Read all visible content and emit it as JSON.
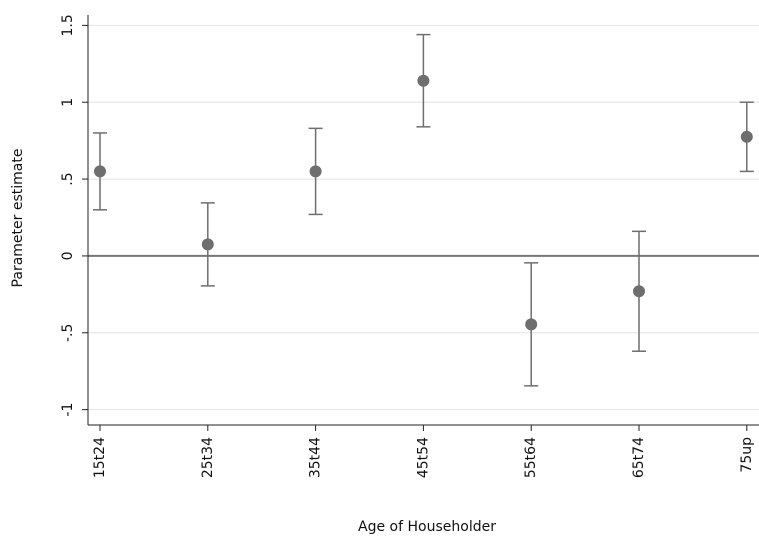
{
  "chart_data": {
    "type": "errorbar",
    "xlabel": "Age of Householder",
    "ylabel": "Parameter estimate",
    "categories": [
      "15t24",
      "25t34",
      "35t44",
      "45t54",
      "55t64",
      "65t74",
      "75up"
    ],
    "values": [
      0.55,
      0.075,
      0.55,
      1.14,
      -0.445,
      -0.23,
      0.775
    ],
    "errors": [
      0.25,
      0.27,
      0.28,
      0.3,
      0.4,
      0.39,
      0.225
    ],
    "color": "#6e6e6e",
    "ylim": [
      -1.1,
      1.6
    ],
    "yticks": [
      1.5,
      1,
      {
        "value": 0.5,
        "label": ".5"
      },
      0,
      {
        "value": -0.5,
        "label": "-.5"
      },
      -1
    ],
    "grid": true,
    "hline": 0
  }
}
